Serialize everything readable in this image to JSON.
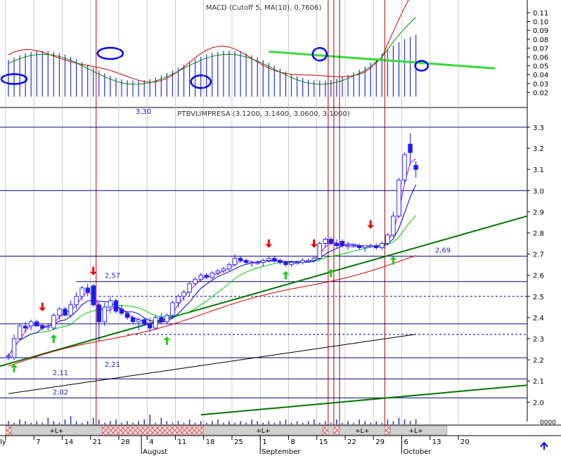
{
  "chart_data": [
    {
      "type": "line",
      "panel": "indicator",
      "title": "MACD (Cutoff 5, MA(10),  0,7606)",
      "ylim": [
        0.015,
        0.12
      ],
      "yticks": [
        "0.11",
        "0.10",
        "0.09",
        "0.08",
        "0.07",
        "0.06",
        "0.05",
        "0.04",
        "0.03",
        "0.02"
      ],
      "ytick_values": [
        0.11,
        0.1,
        0.09,
        0.08,
        0.07,
        0.06,
        0.05,
        0.04,
        0.03,
        0.02
      ],
      "annotation": "3,30"
    },
    {
      "type": "candlestick",
      "panel": "price",
      "title": "PTBVLIMPRESA (3.1200, 3.1400, 3.0600, 3.1000)",
      "ylim": [
        1.95,
        3.32
      ],
      "yticks": [
        "3.3",
        "3.2",
        "3.1",
        "3.0",
        "2.9",
        "2.8",
        "2.7",
        "2.6",
        "2.5",
        "2.4",
        "2.3",
        "2.2",
        "2.1",
        "2.0"
      ],
      "ytick_values": [
        3.3,
        3.2,
        3.1,
        3.0,
        2.9,
        2.8,
        2.7,
        2.6,
        2.5,
        2.4,
        2.3,
        2.2,
        2.1,
        2.0
      ],
      "level_labels": [
        {
          "text": "2,57",
          "value": 2.57
        },
        {
          "text": "2,21",
          "value": 2.21
        },
        {
          "text": "2,11",
          "value": 2.11
        },
        {
          "text": "2,02",
          "value": 2.02
        },
        {
          "text": "2,69",
          "value": 2.69
        }
      ],
      "candles": [
        {
          "o": 2.22,
          "h": 2.23,
          "l": 2.2,
          "c": 2.22
        },
        {
          "o": 2.21,
          "h": 2.32,
          "l": 2.2,
          "c": 2.3
        },
        {
          "o": 2.3,
          "h": 2.37,
          "l": 2.29,
          "c": 2.36
        },
        {
          "o": 2.36,
          "h": 2.38,
          "l": 2.33,
          "c": 2.35
        },
        {
          "o": 2.36,
          "h": 2.39,
          "l": 2.34,
          "c": 2.38
        },
        {
          "o": 2.38,
          "h": 2.39,
          "l": 2.36,
          "c": 2.36
        },
        {
          "o": 2.36,
          "h": 2.37,
          "l": 2.34,
          "c": 2.35
        },
        {
          "o": 2.36,
          "h": 2.37,
          "l": 2.34,
          "c": 2.36
        },
        {
          "o": 2.35,
          "h": 2.42,
          "l": 2.34,
          "c": 2.41
        },
        {
          "o": 2.41,
          "h": 2.45,
          "l": 2.39,
          "c": 2.44
        },
        {
          "o": 2.44,
          "h": 2.45,
          "l": 2.41,
          "c": 2.41
        },
        {
          "o": 2.41,
          "h": 2.48,
          "l": 2.4,
          "c": 2.46
        },
        {
          "o": 2.46,
          "h": 2.52,
          "l": 2.44,
          "c": 2.5
        },
        {
          "o": 2.5,
          "h": 2.55,
          "l": 2.48,
          "c": 2.54
        },
        {
          "o": 2.54,
          "h": 2.56,
          "l": 2.5,
          "c": 2.52
        },
        {
          "o": 2.55,
          "h": 2.56,
          "l": 2.45,
          "c": 2.46
        },
        {
          "o": 2.46,
          "h": 2.48,
          "l": 2.29,
          "c": 2.38
        },
        {
          "o": 2.38,
          "h": 2.47,
          "l": 2.36,
          "c": 2.45
        },
        {
          "o": 2.45,
          "h": 2.5,
          "l": 2.42,
          "c": 2.48
        },
        {
          "o": 2.48,
          "h": 2.49,
          "l": 2.42,
          "c": 2.43
        },
        {
          "o": 2.44,
          "h": 2.46,
          "l": 2.41,
          "c": 2.42
        },
        {
          "o": 2.42,
          "h": 2.43,
          "l": 2.39,
          "c": 2.4
        },
        {
          "o": 2.4,
          "h": 2.41,
          "l": 2.37,
          "c": 2.38
        },
        {
          "o": 2.38,
          "h": 2.4,
          "l": 2.34,
          "c": 2.39
        },
        {
          "o": 2.39,
          "h": 2.4,
          "l": 2.36,
          "c": 2.37
        },
        {
          "o": 2.37,
          "h": 2.4,
          "l": 2.33,
          "c": 2.35
        },
        {
          "o": 2.35,
          "h": 2.41,
          "l": 2.34,
          "c": 2.4
        },
        {
          "o": 2.4,
          "h": 2.42,
          "l": 2.37,
          "c": 2.38
        },
        {
          "o": 2.38,
          "h": 2.42,
          "l": 2.37,
          "c": 2.41
        },
        {
          "o": 2.41,
          "h": 2.48,
          "l": 2.4,
          "c": 2.47
        },
        {
          "o": 2.47,
          "h": 2.51,
          "l": 2.45,
          "c": 2.5
        },
        {
          "o": 2.5,
          "h": 2.53,
          "l": 2.48,
          "c": 2.52
        },
        {
          "o": 2.52,
          "h": 2.57,
          "l": 2.5,
          "c": 2.56
        },
        {
          "o": 2.56,
          "h": 2.59,
          "l": 2.55,
          "c": 2.58
        },
        {
          "o": 2.58,
          "h": 2.61,
          "l": 2.57,
          "c": 2.6
        },
        {
          "o": 2.6,
          "h": 2.61,
          "l": 2.58,
          "c": 2.59
        },
        {
          "o": 2.59,
          "h": 2.62,
          "l": 2.58,
          "c": 2.61
        },
        {
          "o": 2.61,
          "h": 2.63,
          "l": 2.6,
          "c": 2.62
        },
        {
          "o": 2.62,
          "h": 2.64,
          "l": 2.61,
          "c": 2.63
        },
        {
          "o": 2.63,
          "h": 2.66,
          "l": 2.62,
          "c": 2.65
        },
        {
          "o": 2.65,
          "h": 2.7,
          "l": 2.64,
          "c": 2.68
        },
        {
          "o": 2.68,
          "h": 2.69,
          "l": 2.66,
          "c": 2.67
        },
        {
          "o": 2.67,
          "h": 2.68,
          "l": 2.65,
          "c": 2.66
        },
        {
          "o": 2.66,
          "h": 2.67,
          "l": 2.64,
          "c": 2.66
        },
        {
          "o": 2.66,
          "h": 2.67,
          "l": 2.65,
          "c": 2.66
        },
        {
          "o": 2.66,
          "h": 2.68,
          "l": 2.64,
          "c": 2.67
        },
        {
          "o": 2.67,
          "h": 2.69,
          "l": 2.66,
          "c": 2.68
        },
        {
          "o": 2.68,
          "h": 2.69,
          "l": 2.66,
          "c": 2.67
        },
        {
          "o": 2.67,
          "h": 2.68,
          "l": 2.65,
          "c": 2.66
        },
        {
          "o": 2.66,
          "h": 2.67,
          "l": 2.64,
          "c": 2.65
        },
        {
          "o": 2.65,
          "h": 2.67,
          "l": 2.64,
          "c": 2.66
        },
        {
          "o": 2.66,
          "h": 2.67,
          "l": 2.65,
          "c": 2.66
        },
        {
          "o": 2.66,
          "h": 2.68,
          "l": 2.65,
          "c": 2.67
        },
        {
          "o": 2.67,
          "h": 2.68,
          "l": 2.66,
          "c": 2.67
        },
        {
          "o": 2.67,
          "h": 2.69,
          "l": 2.66,
          "c": 2.68
        },
        {
          "o": 2.68,
          "h": 2.76,
          "l": 2.67,
          "c": 2.75
        },
        {
          "o": 2.75,
          "h": 2.78,
          "l": 2.73,
          "c": 2.77
        },
        {
          "o": 2.77,
          "h": 2.78,
          "l": 2.74,
          "c": 2.75
        },
        {
          "o": 2.75,
          "h": 2.77,
          "l": 2.73,
          "c": 2.74
        },
        {
          "o": 2.76,
          "h": 2.77,
          "l": 2.73,
          "c": 2.74
        },
        {
          "o": 2.74,
          "h": 2.76,
          "l": 2.72,
          "c": 2.74
        },
        {
          "o": 2.74,
          "h": 2.75,
          "l": 2.73,
          "c": 2.74
        },
        {
          "o": 2.74,
          "h": 2.75,
          "l": 2.72,
          "c": 2.73
        },
        {
          "o": 2.73,
          "h": 2.74,
          "l": 2.71,
          "c": 2.74
        },
        {
          "o": 2.74,
          "h": 2.75,
          "l": 2.73,
          "c": 2.74
        },
        {
          "o": 2.74,
          "h": 2.75,
          "l": 2.72,
          "c": 2.73
        },
        {
          "o": 2.73,
          "h": 2.76,
          "l": 2.72,
          "c": 2.75
        },
        {
          "o": 2.75,
          "h": 2.8,
          "l": 2.74,
          "c": 2.79
        },
        {
          "o": 2.79,
          "h": 2.9,
          "l": 2.78,
          "c": 2.88
        },
        {
          "o": 2.88,
          "h": 3.06,
          "l": 2.87,
          "c": 3.05
        },
        {
          "o": 3.05,
          "h": 3.18,
          "l": 3.03,
          "c": 3.17
        },
        {
          "o": 3.22,
          "h": 3.27,
          "l": 3.12,
          "c": 3.18
        },
        {
          "o": 3.12,
          "h": 3.14,
          "l": 3.06,
          "c": 3.1
        }
      ],
      "horizontal_lines": [
        3.3,
        3.0,
        2.69,
        2.57,
        2.37,
        2.21,
        2.11,
        2.02
      ],
      "dashed_lines": [
        {
          "value": 2.5,
          "from_index": 16
        },
        {
          "value": 2.32,
          "from_index": 21
        }
      ]
    },
    {
      "type": "bar",
      "panel": "volume",
      "ytick": "0000",
      "values": [
        2,
        1,
        3,
        2,
        1,
        2,
        1,
        4,
        2,
        1,
        3,
        5,
        2,
        1,
        2,
        4,
        3,
        1,
        2,
        3,
        1,
        2,
        1,
        2,
        3,
        2,
        1,
        4,
        2,
        1,
        2,
        1,
        3,
        1,
        2,
        1,
        2,
        3,
        1,
        2,
        1,
        2,
        1,
        3,
        2,
        1,
        2,
        1,
        2,
        3,
        1,
        2,
        1,
        2,
        3,
        1,
        2,
        1,
        3,
        1,
        2,
        1,
        3,
        2,
        1,
        2,
        1,
        3,
        2,
        4,
        3,
        2,
        3
      ]
    }
  ],
  "x_axis": {
    "day_labels": [
      {
        "text": "ly",
        "index": 0
      },
      {
        "text": "7",
        "index": 5
      },
      {
        "text": "14",
        "index": 10
      },
      {
        "text": "21",
        "index": 15
      },
      {
        "text": "28",
        "index": 20
      },
      {
        "text": "4",
        "index": 25
      },
      {
        "text": "11",
        "index": 30
      },
      {
        "text": "18",
        "index": 35
      },
      {
        "text": "25",
        "index": 40
      },
      {
        "text": "1",
        "index": 45
      },
      {
        "text": "8",
        "index": 50
      },
      {
        "text": "15",
        "index": 55
      },
      {
        "text": "22",
        "index": 60
      },
      {
        "text": "29",
        "index": 65
      },
      {
        "text": "6",
        "index": 70
      },
      {
        "text": "13",
        "index": 75
      },
      {
        "text": "20",
        "index": 80
      }
    ],
    "month_labels": [
      {
        "text": "August",
        "index": 24
      },
      {
        "text": "September",
        "index": 45
      },
      {
        "text": "October",
        "index": 70
      }
    ]
  },
  "signal_strip": {
    "label": "+L+",
    "segments": [
      {
        "from": -0.5,
        "to": 0.5,
        "type": "hatch"
      },
      {
        "from": 0.5,
        "to": 16.5,
        "type": "plain"
      },
      {
        "from": 16.5,
        "to": 34.5,
        "type": "hatch"
      },
      {
        "from": 34.5,
        "to": 55.5,
        "type": "plain"
      },
      {
        "from": 55.5,
        "to": 56.5,
        "type": "hatch"
      },
      {
        "from": 56.5,
        "to": 57.5,
        "type": "plain"
      },
      {
        "from": 57.5,
        "to": 58.5,
        "type": "hatch"
      },
      {
        "from": 58.5,
        "to": 66.5,
        "type": "plain"
      },
      {
        "from": 66.5,
        "to": 67.5,
        "type": "hatch"
      },
      {
        "from": 67.5,
        "to": 77.5,
        "type": "plain"
      }
    ],
    "label_positions": [
      8.5,
      45,
      62.5,
      72
    ]
  },
  "markers": {
    "sell_arrows": [
      {
        "i": 6,
        "v": 2.39
      },
      {
        "i": 15,
        "v": 2.56
      },
      {
        "i": 46,
        "v": 2.69
      },
      {
        "i": 54,
        "v": 2.69
      },
      {
        "i": 64,
        "v": 2.78
      }
    ],
    "buy_arrows": [
      {
        "i": 1,
        "v": 2.2
      },
      {
        "i": 8,
        "v": 2.34
      },
      {
        "i": 28,
        "v": 2.33
      },
      {
        "i": 49,
        "v": 2.64
      },
      {
        "i": 57,
        "v": 2.65
      },
      {
        "i": 68,
        "v": 2.71
      }
    ]
  },
  "colors": {
    "candle_up": "#ffffff",
    "candle_down": "#1a1aff",
    "candle_edge": "#1a1aff",
    "grid_navy": "#000080",
    "event_red": "#b00000",
    "ma_short": "#cc00cc",
    "ma_mid": "#0000cc",
    "ma_long": "#00cc00",
    "ma_red": "#dd0000",
    "ma_black": "#000000",
    "trend_dark_green": "#007700",
    "trend_bright_green": "#33dd33",
    "ellipse": "#0000ff",
    "buy_arrow": "#22cc22",
    "sell_arrow": "#ee0000",
    "hatch": "#d04040"
  }
}
